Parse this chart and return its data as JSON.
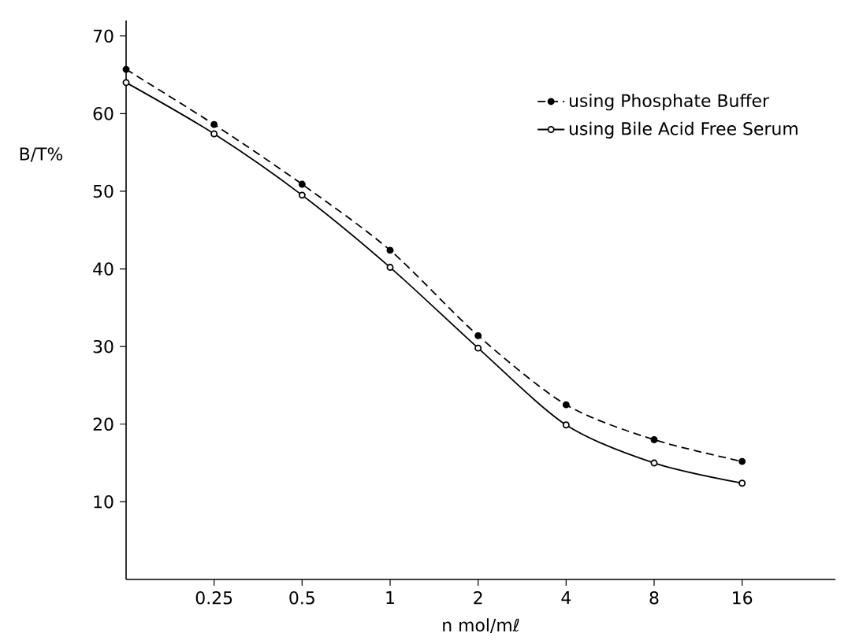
{
  "chart_data": {
    "type": "line",
    "xlabel": "n mol/mℓ",
    "ylabel": "B/T%",
    "categories": [
      null,
      "0.25",
      "0.5",
      "1",
      "2",
      "4",
      "8",
      "16"
    ],
    "series": [
      {
        "name": "using Phosphate Buffer",
        "color": "#000000",
        "line_style": "dashed",
        "values": [
          65.7,
          58.6,
          50.9,
          42.4,
          31.4,
          22.5,
          18,
          15.2
        ]
      },
      {
        "name": "using Bile Acid Free Serum",
        "color": "#000000",
        "line_style": "solid",
        "values": [
          64,
          57.4,
          49.5,
          40.2,
          29.8,
          19.9,
          15,
          12.4
        ]
      }
    ],
    "ylim": [
      0,
      72
    ],
    "yticks": [
      10,
      20,
      30,
      40,
      50,
      60,
      70
    ],
    "marker": "circle",
    "legend": "top right",
    "grid": false
  }
}
